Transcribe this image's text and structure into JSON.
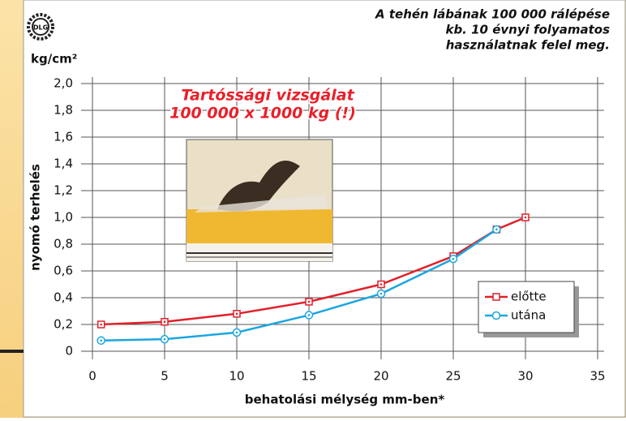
{
  "chart_data": {
    "type": "line",
    "title": [
      "A tehén lábának 100 000 rálépése",
      "kb. 10 évnyi folyamatos",
      "használatnak felel meg."
    ],
    "logo": "DLG",
    "unit": "kg/cm²",
    "y_label": "nyomó terhelés",
    "x_label": "behatolási mélység mm-ben*",
    "annotation": [
      "Tartóssági vizsgálat",
      "100 000 x 1000 kg (!)"
    ],
    "series": [
      {
        "name": "előtte",
        "color": "#e0202a",
        "marker": "square",
        "x": [
          0.6,
          5,
          10,
          15,
          20,
          25,
          28,
          30
        ],
        "values": [
          0.2,
          0.22,
          0.28,
          0.37,
          0.5,
          0.71,
          0.91,
          1.0
        ]
      },
      {
        "name": "utána",
        "color": "#1aa6e0",
        "marker": "circle",
        "x": [
          0.6,
          5,
          10,
          15,
          20,
          25,
          28
        ],
        "values": [
          0.08,
          0.09,
          0.14,
          0.27,
          0.43,
          0.69,
          0.91
        ]
      }
    ],
    "xlim": [
      0,
      35
    ],
    "xticks": [
      0,
      5,
      10,
      15,
      20,
      25,
      30,
      35
    ],
    "ylim": [
      0,
      2
    ],
    "yticks": [
      0,
      {
        "value": 0.2,
        "label": "0,2"
      },
      {
        "value": 0.4,
        "label": "0,4"
      },
      {
        "value": 0.6,
        "label": "0,6"
      },
      {
        "value": 0.8,
        "label": "0,8"
      },
      {
        "value": 1.0,
        "label": "1,0"
      },
      {
        "value": 1.2,
        "label": "1,2"
      },
      {
        "value": 1.4,
        "label": "1,4"
      },
      {
        "value": 1.6,
        "label": "1,6"
      },
      {
        "value": 1.8,
        "label": "1,8"
      },
      {
        "value": 2.0,
        "label": "2,0"
      }
    ],
    "grid": true,
    "legend": "lower right"
  }
}
